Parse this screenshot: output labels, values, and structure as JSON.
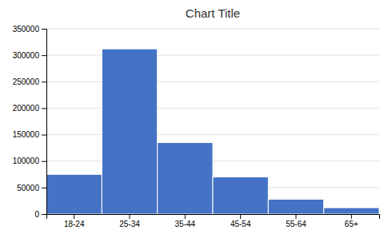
{
  "chart_data": {
    "type": "bar",
    "title": "Chart Title",
    "categories": [
      "18-24",
      "25-34",
      "35-44",
      "45-54",
      "55-64",
      "65+"
    ],
    "values": [
      75000,
      312000,
      135000,
      70000,
      28000,
      12000
    ],
    "color": "#4472C4",
    "ylim": [
      0,
      350000
    ],
    "yticks": [
      0,
      50000,
      100000,
      150000,
      200000,
      250000,
      300000,
      350000
    ],
    "grid": true
  }
}
